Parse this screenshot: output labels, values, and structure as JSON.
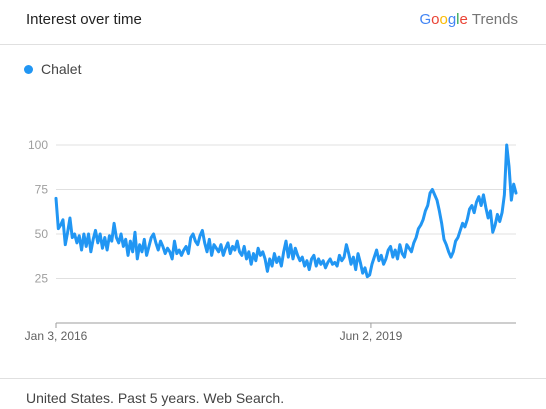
{
  "header": {
    "title": "Interest over time",
    "brand": {
      "letters": [
        "G",
        "o",
        "o",
        "g",
        "l",
        "e"
      ],
      "suffix": "Trends"
    }
  },
  "footer": {
    "text": "United States. Past 5 years. Web Search."
  },
  "colors": {
    "series": "#2196F3",
    "grid": "#e0e0e0",
    "axis": "#9e9e9e"
  },
  "chart_data": {
    "type": "line",
    "y_ticks": [
      25,
      50,
      75,
      100
    ],
    "ylim": [
      0,
      100
    ],
    "x_tick_labels": [
      {
        "label": "Jan 3, 2016",
        "date": "2016-01-03"
      },
      {
        "label": "Jun 2, 2019",
        "date": "2019-06-02"
      }
    ],
    "xlim": [
      "2016-01-03",
      "2020-12-27"
    ],
    "grid": true,
    "legend": "top-left",
    "series": [
      {
        "name": "Chalet",
        "color": "#2196F3",
        "values": [
          70,
          53,
          55,
          58,
          44,
          51,
          59,
          48,
          50,
          45,
          49,
          41,
          50,
          43,
          50,
          40,
          47,
          52,
          45,
          50,
          42,
          48,
          41,
          49,
          46,
          56,
          48,
          45,
          50,
          43,
          47,
          38,
          46,
          40,
          51,
          36,
          44,
          40,
          47,
          38,
          43,
          48,
          50,
          45,
          41,
          46,
          43,
          39,
          42,
          40,
          36,
          46,
          39,
          41,
          38,
          41,
          43,
          39,
          48,
          50,
          46,
          44,
          49,
          52,
          45,
          40,
          47,
          38,
          44,
          42,
          40,
          44,
          38,
          42,
          45,
          39,
          43,
          41,
          46,
          40,
          38,
          43,
          36,
          40,
          33,
          39,
          35,
          42,
          38,
          40,
          36,
          29,
          36,
          32,
          39,
          34,
          37,
          32,
          40,
          46,
          37,
          44,
          36,
          42,
          38,
          35,
          37,
          32,
          35,
          30,
          36,
          38,
          32,
          36,
          33,
          35,
          31,
          34,
          36,
          33,
          34,
          32,
          38,
          35,
          37,
          44,
          39,
          33,
          37,
          30,
          39,
          34,
          28,
          31,
          26,
          27,
          33,
          37,
          41,
          35,
          38,
          33,
          36,
          41,
          43,
          37,
          41,
          36,
          44,
          39,
          37,
          44,
          42,
          40,
          45,
          48,
          53,
          55,
          58,
          63,
          66,
          73,
          75,
          72,
          69,
          63,
          56,
          47,
          44,
          40,
          37,
          40,
          46,
          48,
          52,
          56,
          54,
          58,
          64,
          66,
          62,
          68,
          71,
          66,
          72,
          65,
          59,
          63,
          51,
          55,
          61,
          57,
          62,
          72,
          100,
          88,
          69,
          78,
          73
        ]
      }
    ]
  }
}
